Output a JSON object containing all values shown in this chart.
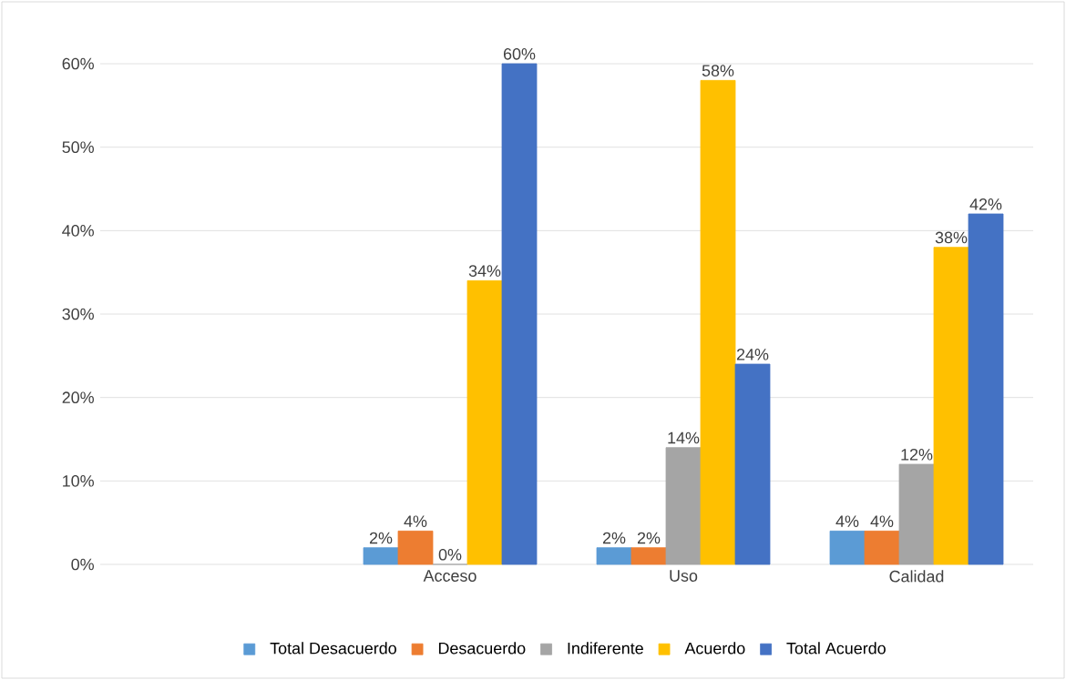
{
  "chart_data": {
    "type": "bar",
    "categories": [
      null,
      "Acceso",
      "Uso",
      "Calidad"
    ],
    "series": [
      {
        "name": "Total Desacuerdo",
        "color": "#5b9bd5",
        "values": [
          null,
          2,
          2,
          4
        ],
        "value_labels": [
          null,
          "2%",
          "2%",
          "4%"
        ]
      },
      {
        "name": "Desacuerdo",
        "color": "#ed7d31",
        "values": [
          null,
          4,
          2,
          4
        ],
        "value_labels": [
          null,
          "4%",
          "2%",
          "4%"
        ]
      },
      {
        "name": "Indiferente",
        "color": "#a5a5a5",
        "values": [
          null,
          0,
          14,
          12
        ],
        "value_labels": [
          null,
          "0%",
          "14%",
          "12%"
        ]
      },
      {
        "name": "Acuerdo",
        "color": "#ffc000",
        "values": [
          null,
          34,
          58,
          38
        ],
        "value_labels": [
          null,
          "34%",
          "58%",
          "38%"
        ]
      },
      {
        "name": "Total Acuerdo",
        "color": "#4472c4",
        "values": [
          null,
          60,
          24,
          42
        ],
        "value_labels": [
          null,
          "60%",
          "24%",
          "42%"
        ]
      }
    ],
    "ylim": [
      0,
      60
    ],
    "yticks": [
      {
        "value": 0,
        "label": "0%"
      },
      {
        "value": 10,
        "label": "10%"
      },
      {
        "value": 20,
        "label": "20%"
      },
      {
        "value": 30,
        "label": "30%"
      },
      {
        "value": 40,
        "label": "40%"
      },
      {
        "value": 50,
        "label": "50%"
      },
      {
        "value": 60,
        "label": "60%"
      }
    ],
    "grid": "y",
    "legend": "bottom"
  }
}
